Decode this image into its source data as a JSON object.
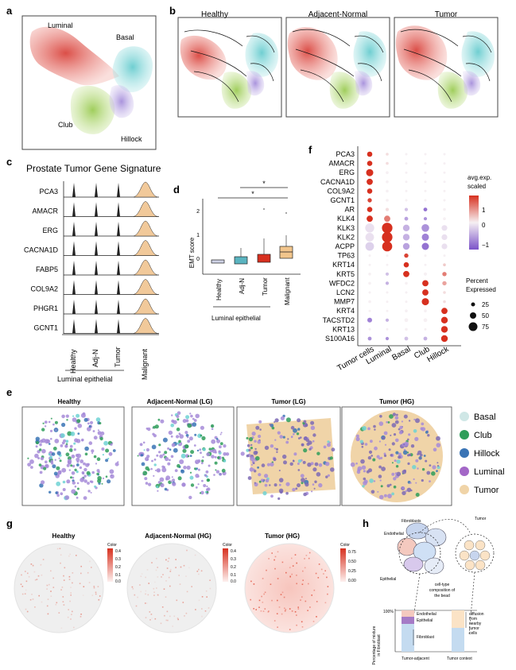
{
  "panels": {
    "a": {
      "label": "a",
      "clusters": [
        "Luminal",
        "Basal",
        "Club",
        "Hillock"
      ]
    },
    "b": {
      "label": "b",
      "conditions": [
        "Healthy",
        "Adjacent-Normal",
        "Tumor"
      ]
    },
    "c": {
      "label": "c",
      "title": "Prostate Tumor Gene Signature",
      "genes": [
        "PCA3",
        "AMACR",
        "ERG",
        "CACNA1D",
        "FABP5",
        "COL9A2",
        "PHGR1",
        "GCNT1"
      ],
      "groups": [
        "Healthy",
        "Adj-N",
        "Tumor",
        "Malignant"
      ],
      "group_caption": "Luminal epithelial"
    },
    "d": {
      "label": "d",
      "ylabel": "EMT score",
      "yticks": [
        "0",
        "1",
        "2"
      ],
      "groups": [
        "Healthy",
        "Adj-N",
        "Tumor",
        "Malignant"
      ],
      "group_caption": "Luminal epithelial",
      "sig1": "*",
      "sig2": "*"
    },
    "f": {
      "label": "f",
      "genes": [
        "PCA3",
        "AMACR",
        "ERG",
        "CACNA1D",
        "COL9A2",
        "GCNT1",
        "AR",
        "KLK4",
        "KLK3",
        "KLK2",
        "ACPP",
        "TP63",
        "KRT14",
        "KRT5",
        "WFDC2",
        "LCN2",
        "MMP7",
        "KRT4",
        "TACSTD2",
        "KRT13",
        "S100A16"
      ],
      "celltypes": [
        "Tumor cells",
        "Luminal",
        "Basal",
        "Club",
        "Hillock"
      ],
      "legend_title": "avg.exp.\nscaled",
      "legend_ticks": [
        "1",
        "0",
        "−1"
      ],
      "size_title": "Percent\nExpressed",
      "size_values": [
        "25",
        "50",
        "75"
      ]
    },
    "e": {
      "label": "e",
      "titles": [
        "Healthy",
        "Adjacent-Normal (LG)",
        "Tumor (LG)",
        "Tumor (HG)"
      ],
      "legend": [
        "Basal",
        "Club",
        "Hillock",
        "Luminal",
        "Tumor"
      ]
    },
    "g": {
      "label": "g",
      "titles": [
        "Healthy",
        "Adjacent-Normal (HG)",
        "Tumor (HG)"
      ],
      "legend_title": "Color",
      "ticks1": [
        "0.4",
        "0.3",
        "0.2",
        "0.1",
        "0.0"
      ],
      "ticks2": [
        "0.4",
        "0.3",
        "0.2",
        "0.1",
        "0.0"
      ],
      "ticks3": [
        "0.75",
        "0.50",
        "0.25",
        "0.00"
      ]
    },
    "h": {
      "label": "h",
      "cells": [
        "Fibroblasts",
        "Endothelial",
        "Epithelial",
        "Tumor"
      ],
      "middle": "cell-type\ncomposition of\nthe bead",
      "ytitle": "Percentage of mixture\nin Fibroblast",
      "pct": "100%",
      "bar_labels": [
        "Endothelial",
        "Epithelial",
        "Fibroblast"
      ],
      "diffusion": "diffusion\nfrom\nnearby\ntumor\ncells",
      "xlabels": [
        "Tumor-adjacent",
        "Tumor context"
      ]
    }
  },
  "colors": {
    "luminal": "#e0605a",
    "basal": "#6fd2d4",
    "club": "#9ccc4f",
    "hillock": "#a68bd8",
    "tumor": "#f0d4a8"
  }
}
